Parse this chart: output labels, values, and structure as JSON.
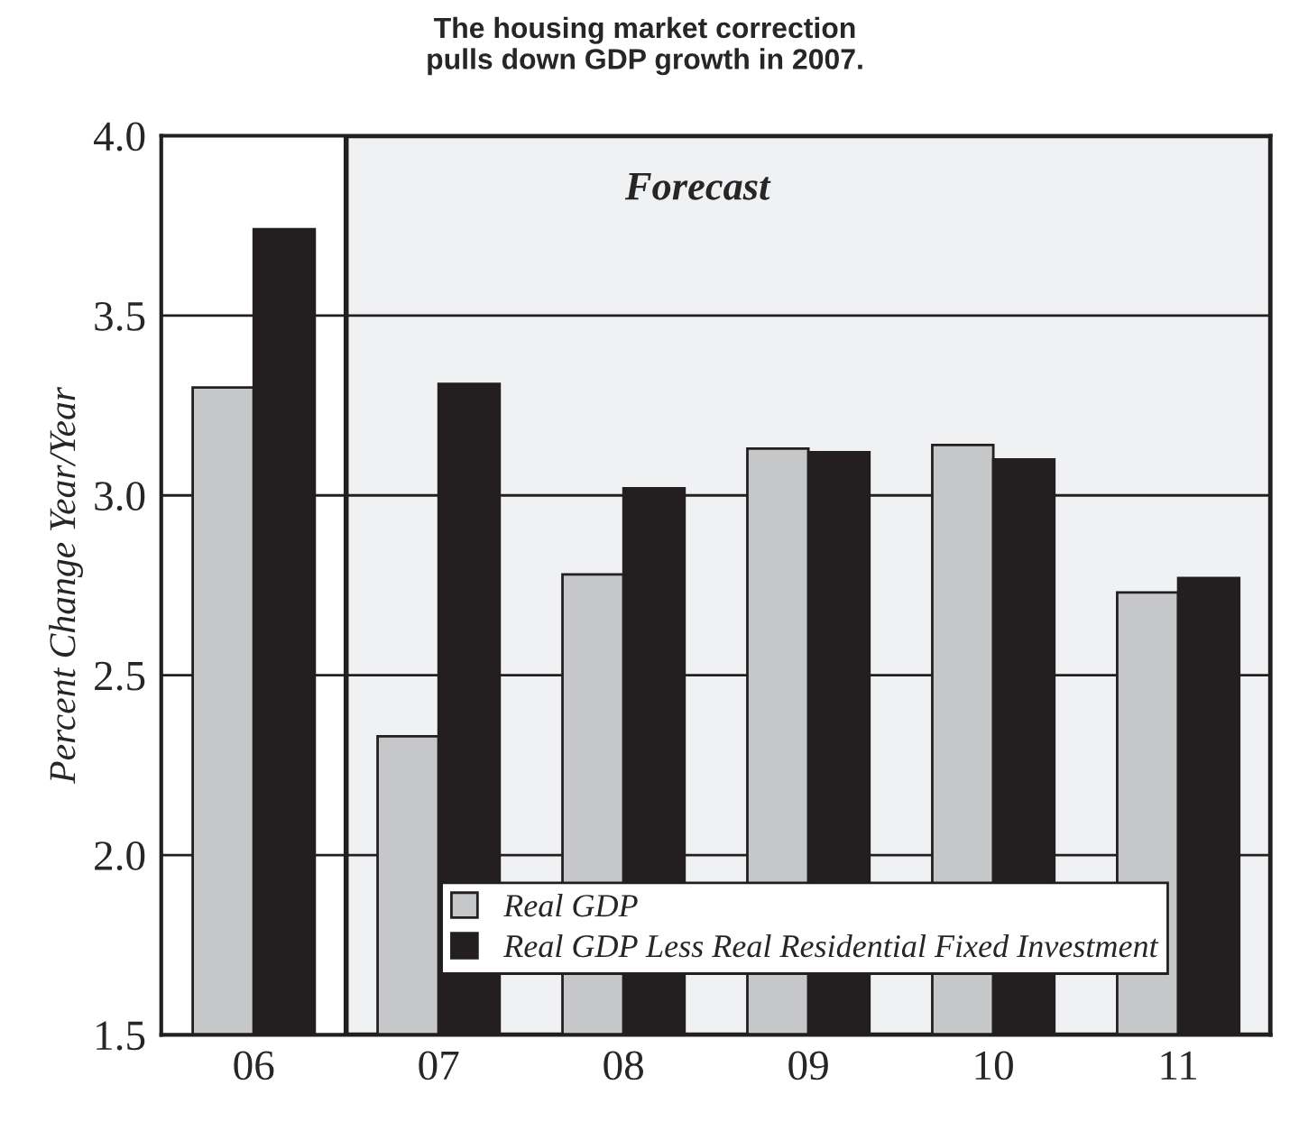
{
  "chart_data": {
    "type": "bar",
    "title": "The housing market correction\npulls down GDP growth in 2007.",
    "ylabel": "Percent Change Year/Year",
    "categories": [
      "06",
      "07",
      "08",
      "09",
      "10",
      "11"
    ],
    "series": [
      {
        "name": "Real GDP",
        "color": "#c6c7c9",
        "values": [
          3.3,
          2.33,
          2.78,
          3.13,
          3.14,
          2.73
        ]
      },
      {
        "name": "Real GDP Less Real Residential Fixed Investment",
        "color": "#231f20",
        "values": [
          3.74,
          3.31,
          3.02,
          3.12,
          3.1,
          2.77
        ]
      }
    ],
    "bands": [
      {
        "axis": "x",
        "from": "07",
        "to": "11",
        "label": "Forecast",
        "color": "#f0f1f3"
      }
    ],
    "ylim": [
      1.5,
      4.0
    ],
    "yticks": [
      {
        "value": 1.5,
        "label": "1.5"
      },
      {
        "value": 2.0,
        "label": "2.0"
      },
      {
        "value": 2.5,
        "label": "2.5"
      },
      {
        "value": 3.0,
        "label": "3.0"
      },
      {
        "value": 3.5,
        "label": "3.5"
      },
      {
        "value": 4.0,
        "label": "4.0"
      }
    ],
    "grid": "y",
    "legend": "bottom"
  }
}
